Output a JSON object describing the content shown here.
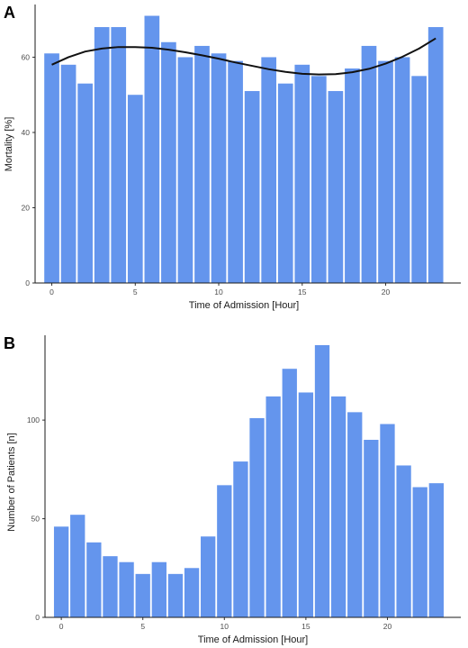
{
  "colors": {
    "bar": "#6495ed",
    "trend": "#111111"
  },
  "panels": [
    {
      "letter": "A",
      "chart_data": {
        "type": "bar",
        "x": [
          0,
          1,
          2,
          3,
          4,
          5,
          6,
          7,
          8,
          9,
          10,
          11,
          12,
          13,
          14,
          15,
          16,
          17,
          18,
          19,
          20,
          21,
          22,
          23
        ],
        "values": [
          61,
          58,
          53,
          68,
          68,
          50,
          71,
          64,
          60,
          63,
          61,
          59,
          51,
          60,
          53,
          58,
          55,
          51,
          57,
          63,
          59,
          60,
          55,
          68
        ],
        "xlabel": "Time of Admission [Hour]",
        "ylabel": "Mortality [%]",
        "xticks": [
          0,
          5,
          10,
          15,
          20
        ],
        "yticks": [
          0,
          20,
          40,
          60
        ],
        "xlim": [
          -1,
          24.5
        ],
        "ylim": [
          0,
          74
        ],
        "grid": false,
        "trend_line": {
          "type": "smooth fit",
          "x": [
            0,
            1,
            2,
            3,
            4,
            5,
            6,
            7,
            8,
            9,
            10,
            11,
            12,
            13,
            14,
            15,
            16,
            17,
            18,
            19,
            20,
            21,
            22,
            23
          ],
          "y": [
            58,
            60,
            61.5,
            62.3,
            62.7,
            62.7,
            62.5,
            62,
            61.3,
            60.5,
            59.6,
            58.6,
            57.7,
            56.8,
            56.1,
            55.6,
            55.4,
            55.5,
            56,
            56.9,
            58.3,
            60.1,
            62.3,
            65
          ]
        }
      }
    },
    {
      "letter": "B",
      "chart_data": {
        "type": "bar",
        "x": [
          0,
          1,
          2,
          3,
          4,
          5,
          6,
          7,
          8,
          9,
          10,
          11,
          12,
          13,
          14,
          15,
          16,
          17,
          18,
          19,
          20,
          21,
          22,
          23
        ],
        "values": [
          46,
          52,
          38,
          31,
          28,
          22,
          28,
          22,
          25,
          41,
          67,
          79,
          101,
          112,
          126,
          114,
          138,
          112,
          104,
          90,
          98,
          77,
          66,
          68
        ],
        "xlabel": "Time of Admission [Hour]",
        "ylabel": "Number of Patients [n]",
        "xticks": [
          0,
          5,
          10,
          15,
          20
        ],
        "yticks": [
          0,
          50,
          100
        ],
        "xlim": [
          -1,
          24.5
        ],
        "ylim": [
          0,
          143
        ],
        "grid": false
      }
    }
  ]
}
